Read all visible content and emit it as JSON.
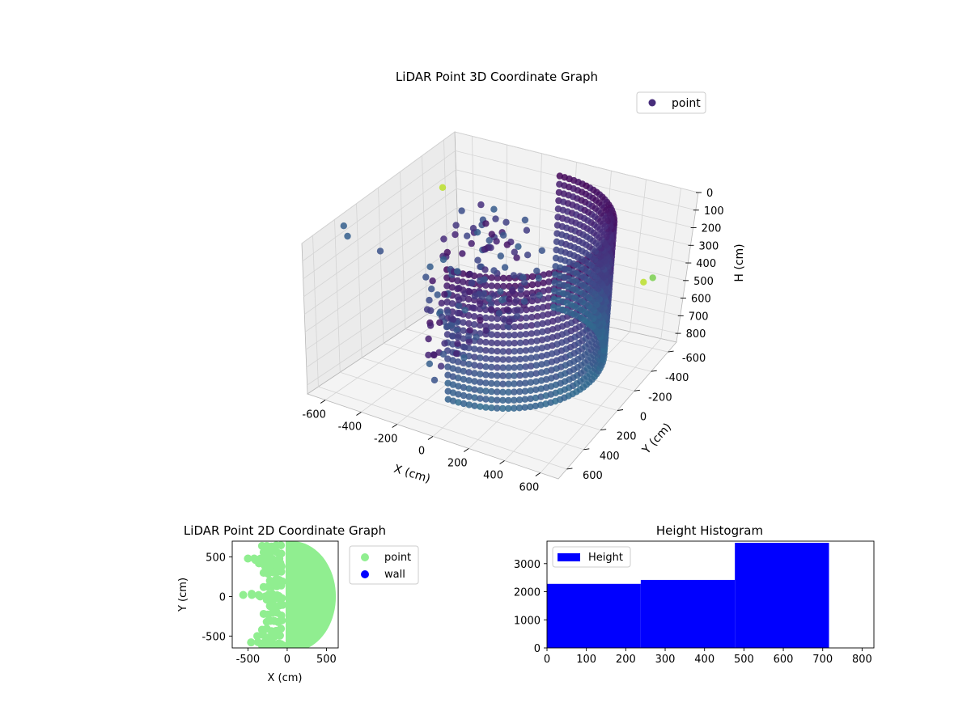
{
  "chart_data": [
    {
      "type": "scatter",
      "title": "LiDAR Point 3D Coordinate Graph",
      "xlabel": "X (cm)",
      "ylabel": "Y (cm)",
      "zlabel": "H (cm)",
      "xlim": [
        -700,
        700
      ],
      "ylim": [
        -700,
        700
      ],
      "zlim": [
        850,
        0
      ],
      "x_ticks": [
        "-600",
        "-400",
        "-200",
        "0",
        "200",
        "400",
        "600"
      ],
      "y_ticks": [
        "-600",
        "-400",
        "-200",
        "0",
        "200",
        "400",
        "600"
      ],
      "z_ticks": [
        "0",
        "100",
        "200",
        "300",
        "400",
        "500",
        "600",
        "700",
        "800"
      ],
      "legend": [
        "point"
      ],
      "legend_placement": "top-right",
      "colormap": "viridis",
      "grid": true,
      "shape": "half-cylinder arc of points, radius ~550 cm, heights 0-720 cm, x>0 half, with scattered outliers",
      "outliers": [
        {
          "x": -650,
          "y": 400,
          "h": 20,
          "c": 0.3
        },
        {
          "x": -600,
          "y": 450,
          "h": 40,
          "c": 0.3
        },
        {
          "x": -450,
          "y": 400,
          "h": 100,
          "c": 0.25
        },
        {
          "x": -650,
          "y": -500,
          "h": 200,
          "c": 0.9
        },
        {
          "x": 400,
          "y": 650,
          "h": 50,
          "c": 0.3
        },
        {
          "x": 650,
          "y": 380,
          "h": 150,
          "c": 0.55
        },
        {
          "x": 650,
          "y": 300,
          "h": 250,
          "c": 0.5
        },
        {
          "x": 600,
          "y": -500,
          "h": 400,
          "c": 0.8
        },
        {
          "x": 500,
          "y": -600,
          "h": 500,
          "c": 0.9
        },
        {
          "x": -700,
          "y": -400,
          "h": 650,
          "c": 0.25
        },
        {
          "x": -600,
          "y": -300,
          "h": 650,
          "c": 0.25
        }
      ]
    },
    {
      "type": "scatter",
      "title": "LiDAR Point 2D Coordinate Graph",
      "xlabel": "X (cm)",
      "ylabel": "Y (cm)",
      "xlim": [
        -700,
        650
      ],
      "ylim": [
        -650,
        700
      ],
      "x_ticks": [
        -500,
        0,
        500
      ],
      "y_ticks": [
        -500,
        0,
        500
      ],
      "series": [
        {
          "name": "point",
          "color": "#90ee90"
        },
        {
          "name": "wall",
          "color": "#0000ff"
        }
      ],
      "legend_placement": "outside-right",
      "shape": "filled half-disc x from 0 to ~550, plus ragged spikes to the left"
    },
    {
      "type": "bar",
      "title": "Height Histogram",
      "xlim": [
        0,
        830
      ],
      "ylim": [
        0,
        3800
      ],
      "x_ticks": [
        0,
        100,
        200,
        300,
        400,
        500,
        600,
        700,
        800
      ],
      "y_ticks": [
        0,
        1000,
        2000,
        3000
      ],
      "bins": [
        {
          "x0": 0,
          "x1": 238,
          "value": 2280
        },
        {
          "x0": 238,
          "x1": 477,
          "value": 2420
        },
        {
          "x0": 477,
          "x1": 716,
          "value": 3740
        }
      ],
      "series": [
        {
          "name": "Height",
          "color": "#0000ff"
        }
      ],
      "legend_placement": "top-left"
    }
  ]
}
